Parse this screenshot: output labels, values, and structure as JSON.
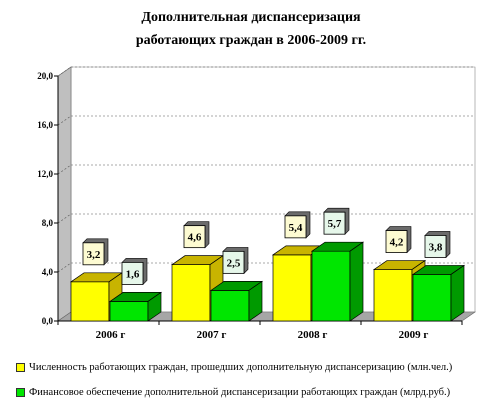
{
  "chart_data": {
    "type": "bar",
    "title_lines": [
      "Дополнительная диспансеризация",
      "работающих граждан в 2006-2009 гг."
    ],
    "categories": [
      "2006 г",
      "2007 г",
      "2008 г",
      "2009 г"
    ],
    "series": [
      {
        "name": "Численность работающих граждан, прошедших дополнительную диспансеризацию (млн.чел.)",
        "values": [
          3.2,
          4.6,
          5.4,
          4.2
        ],
        "labels": [
          "3,2",
          "4,6",
          "5,4",
          "4,2"
        ],
        "color": "#ffff00",
        "dark_color": "#c8b400",
        "label_bg": "#fdfbd2"
      },
      {
        "name": "Финансовое обеспечение дополнительной диспансеризации работающих граждан (млрд.руб.)",
        "values": [
          1.6,
          2.5,
          5.7,
          3.8
        ],
        "labels": [
          "1,6",
          "2,5",
          "5,7",
          "3,8"
        ],
        "color": "#00e600",
        "dark_color": "#009a00",
        "label_bg": "#e6f7ea"
      }
    ],
    "ylim": [
      0,
      20
    ],
    "yticks": [
      0,
      4,
      8,
      12,
      16,
      20
    ],
    "ytick_labels": [
      "0,0",
      "4,0",
      "8,0",
      "12,0",
      "16,0",
      "20,0"
    ],
    "grid": "horizontal dashed",
    "legend_position": "bottom",
    "style": "3d"
  }
}
